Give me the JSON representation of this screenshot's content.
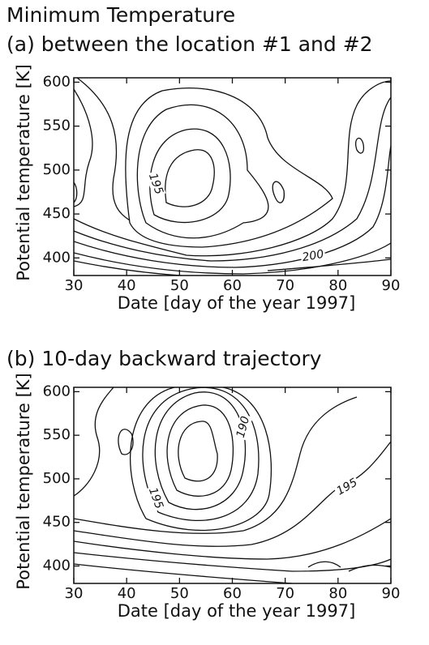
{
  "chart_data": [
    {
      "type": "contour",
      "title": "Minimum Temperature",
      "subtitle": "(a) between the location #1 and #2",
      "xlabel": "Date [day of the year 1997]",
      "ylabel": "Potential temperature [K]",
      "xlim": [
        30,
        90
      ],
      "ylim": [
        380,
        605
      ],
      "xticks": [
        30,
        40,
        50,
        60,
        70,
        80,
        90
      ],
      "yticks": [
        400,
        450,
        500,
        550,
        600
      ],
      "contour_labels": [
        195,
        200
      ]
    },
    {
      "type": "contour",
      "subtitle": "(b) 10-day backward trajectory",
      "xlabel": "Date [day of the year 1997]",
      "ylabel": "Potential temperature [K]",
      "xlim": [
        30,
        90
      ],
      "ylim": [
        380,
        605
      ],
      "xticks": [
        30,
        40,
        50,
        60,
        70,
        80,
        90
      ],
      "yticks": [
        400,
        450,
        500,
        550,
        600
      ],
      "contour_labels": [
        190,
        195,
        195
      ]
    }
  ]
}
